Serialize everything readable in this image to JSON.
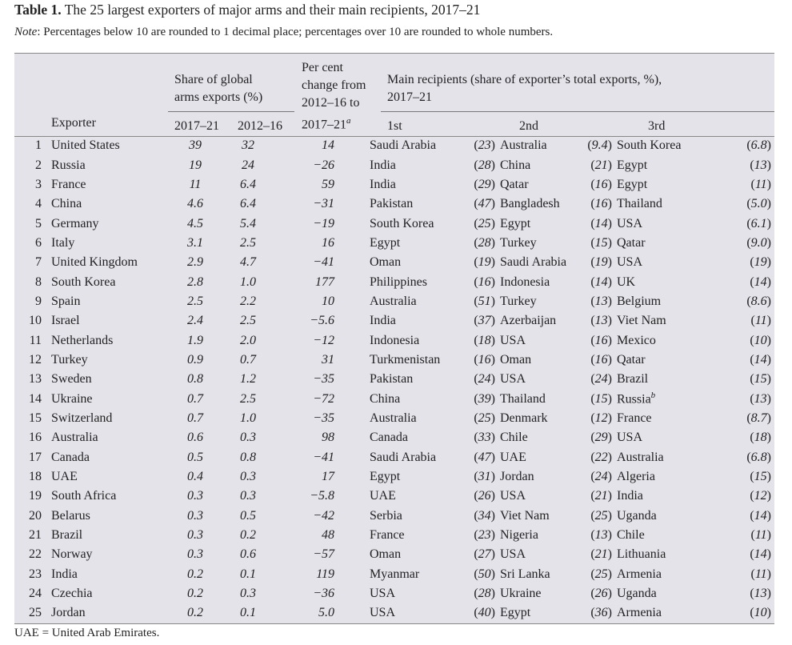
{
  "title_bold": "Table 1.",
  "title": " The 25 largest exporters of major arms and their main recipients, 2017–21",
  "note_label": "Note",
  "note": ": Percentages below 10 are rounded to 1 decimal place; percentages over 10 are rounded to whole numbers.",
  "headers": {
    "exporter": "Exporter",
    "share_group_1": "Share of global",
    "share_group_2": "arms exports (%)",
    "y1": "2017–21",
    "y2": "2012–16",
    "change_1": "Per cent",
    "change_2": "change from",
    "change_3": "2012–16 to",
    "change_4": "2017–21",
    "change_sup": "a",
    "recip_1": "Main recipients (share of exporter’s total exports, %),",
    "recip_2": "2017–21",
    "first": "1st",
    "second": "2nd",
    "third": "3rd"
  },
  "rows": [
    [
      "1",
      "United States",
      "39",
      "32",
      "14",
      "Saudi Arabia",
      "23",
      "Australia",
      "9.4",
      "South Korea",
      "6.8"
    ],
    [
      "2",
      "Russia",
      "19",
      "24",
      "−26",
      "India",
      "28",
      "China",
      "21",
      "Egypt",
      "13"
    ],
    [
      "3",
      "France",
      "11",
      "6.4",
      "59",
      "India",
      "29",
      "Qatar",
      "16",
      "Egypt",
      "11"
    ],
    [
      "4",
      "China",
      "4.6",
      "6.4",
      "−31",
      "Pakistan",
      "47",
      "Bangladesh",
      "16",
      "Thailand",
      "5.0"
    ],
    [
      "5",
      "Germany",
      "4.5",
      "5.4",
      "−19",
      "South Korea",
      "25",
      "Egypt",
      "14",
      "USA",
      "6.1"
    ],
    [
      "6",
      "Italy",
      "3.1",
      "2.5",
      "16",
      "Egypt",
      "28",
      "Turkey",
      "15",
      "Qatar",
      "9.0"
    ],
    [
      "7",
      "United Kingdom",
      "2.9",
      "4.7",
      "−41",
      "Oman",
      "19",
      "Saudi Arabia",
      "19",
      "USA",
      "19"
    ],
    [
      "8",
      "South Korea",
      "2.8",
      "1.0",
      "177",
      "Philippines",
      "16",
      "Indonesia",
      "14",
      "UK",
      "14"
    ],
    [
      "9",
      "Spain",
      "2.5",
      "2.2",
      "10",
      "Australia",
      "51",
      "Turkey",
      "13",
      "Belgium",
      "8.6"
    ],
    [
      "10",
      "Israel",
      "2.4",
      "2.5",
      "−5.6",
      "India",
      "37",
      "Azerbaijan",
      "13",
      "Viet Nam",
      "11"
    ],
    [
      "11",
      "Netherlands",
      "1.9",
      "2.0",
      "−12",
      "Indonesia",
      "18",
      "USA",
      "16",
      "Mexico",
      "10"
    ],
    [
      "12",
      "Turkey",
      "0.9",
      "0.7",
      "31",
      "Turkmenistan",
      "16",
      "Oman",
      "16",
      "Qatar",
      "14"
    ],
    [
      "13",
      "Sweden",
      "0.8",
      "1.2",
      "−35",
      "Pakistan",
      "24",
      "USA",
      "24",
      "Brazil",
      "15"
    ],
    [
      "14",
      "Ukraine",
      "0.7",
      "2.5",
      "−72",
      "China",
      "39",
      "Thailand",
      "15",
      "Russia",
      "13"
    ],
    [
      "15",
      "Switzerland",
      "0.7",
      "1.0",
      "−35",
      "Australia",
      "25",
      "Denmark",
      "12",
      "France",
      "8.7"
    ],
    [
      "16",
      "Australia",
      "0.6",
      "0.3",
      "98",
      "Canada",
      "33",
      "Chile",
      "29",
      "USA",
      "18"
    ],
    [
      "17",
      "Canada",
      "0.5",
      "0.8",
      "−41",
      "Saudi Arabia",
      "47",
      "UAE",
      "22",
      "Australia",
      "6.8"
    ],
    [
      "18",
      "UAE",
      "0.4",
      "0.3",
      "17",
      "Egypt",
      "31",
      "Jordan",
      "24",
      "Algeria",
      "15"
    ],
    [
      "19",
      "South Africa",
      "0.3",
      "0.3",
      "−5.8",
      "UAE",
      "26",
      "USA",
      "21",
      "India",
      "12"
    ],
    [
      "20",
      "Belarus",
      "0.3",
      "0.5",
      "−42",
      "Serbia",
      "34",
      "Viet Nam",
      "25",
      "Uganda",
      "14"
    ],
    [
      "21",
      "Brazil",
      "0.3",
      "0.2",
      "48",
      "France",
      "23",
      "Nigeria",
      "13",
      "Chile",
      "11"
    ],
    [
      "22",
      "Norway",
      "0.3",
      "0.6",
      "−57",
      "Oman",
      "27",
      "USA",
      "21",
      "Lithuania",
      "14"
    ],
    [
      "23",
      "India",
      "0.2",
      "0.1",
      "119",
      "Myanmar",
      "50",
      "Sri Lanka",
      "25",
      "Armenia",
      "11"
    ],
    [
      "24",
      "Czechia",
      "0.2",
      "0.3",
      "−36",
      "USA",
      "28",
      "Ukraine",
      "26",
      "Uganda",
      "13"
    ],
    [
      "25",
      "Jordan",
      "0.2",
      "0.1",
      "5.0",
      "USA",
      "40",
      "Egypt",
      "36",
      "Armenia",
      "10"
    ]
  ],
  "row14_sup": "b",
  "footnote": "UAE = United Arab Emirates."
}
